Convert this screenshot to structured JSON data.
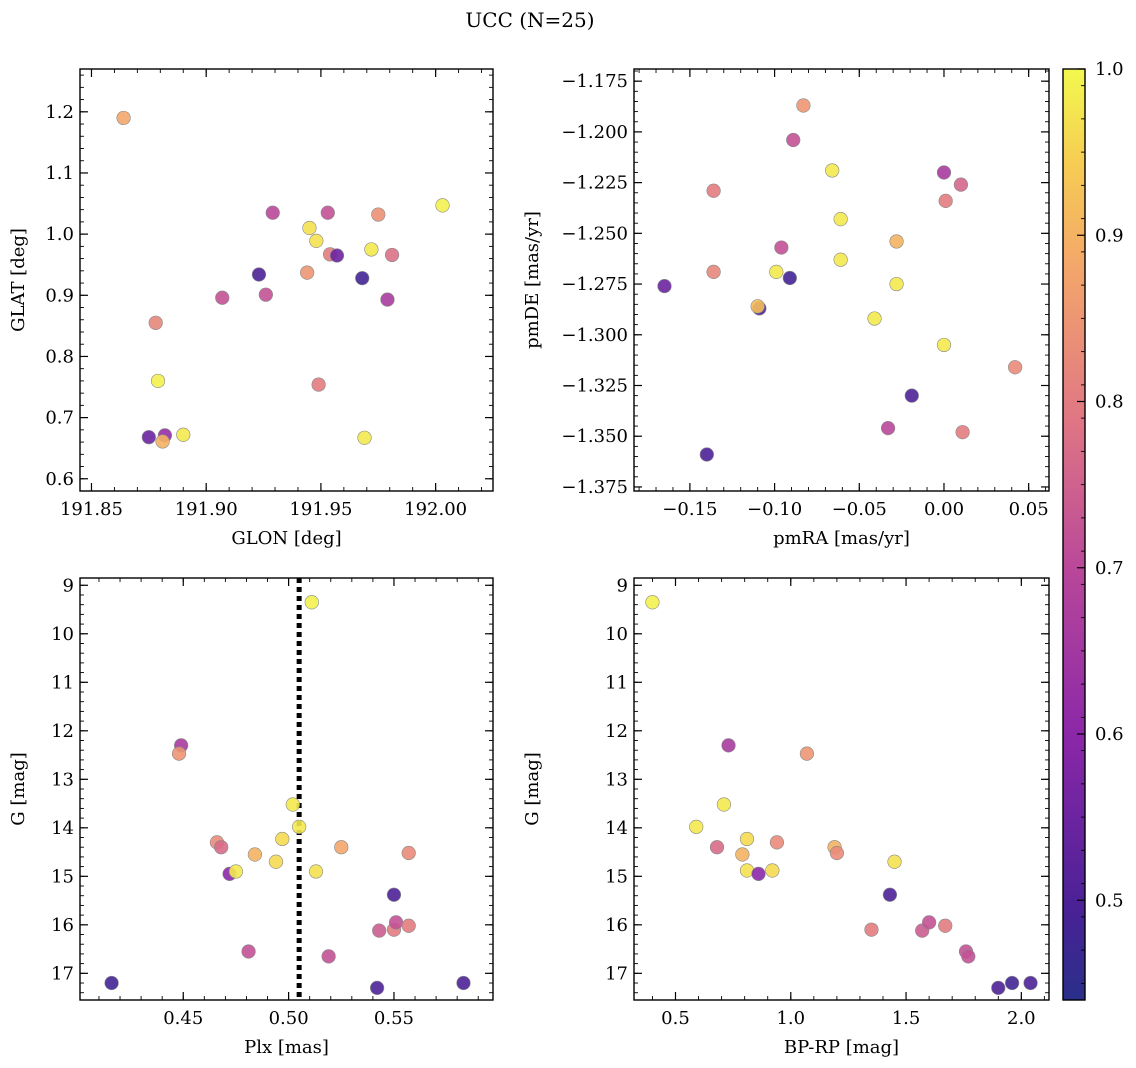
{
  "title": "UCC (N=25)",
  "colorbar": {
    "range": [
      0.44,
      1.0
    ],
    "ticks": [
      0.5,
      0.6,
      0.7,
      0.8,
      0.9,
      1.0
    ],
    "tick_labels": [
      "0.5",
      "0.6",
      "0.7",
      "0.8",
      "0.9",
      "1.0"
    ],
    "colormap": "plasma"
  },
  "chart_data": [
    {
      "id": "glon-glat",
      "type": "scatter",
      "xlabel": "GLON [deg]",
      "ylabel": "GLAT [deg]",
      "xlim": [
        191.845,
        192.025
      ],
      "ylim": [
        0.58,
        1.27
      ],
      "invert_y": false,
      "xticks": [
        191.85,
        191.9,
        191.95,
        192.0
      ],
      "xtick_labels": [
        "191.85",
        "191.90",
        "191.95",
        "192.00"
      ],
      "yticks": [
        0.6,
        0.7,
        0.8,
        0.9,
        1.0,
        1.1,
        1.2
      ],
      "ytick_labels": [
        "0.6",
        "0.7",
        "0.8",
        "0.9",
        "1.0",
        "1.1",
        "1.2"
      ],
      "points": [
        {
          "x": 191.864,
          "y": 1.19,
          "c": 0.88
        },
        {
          "x": 191.878,
          "y": 0.855,
          "c": 0.82
        },
        {
          "x": 191.879,
          "y": 0.76,
          "c": 0.99
        },
        {
          "x": 191.875,
          "y": 0.668,
          "c": 0.55
        },
        {
          "x": 191.882,
          "y": 0.671,
          "c": 0.62
        },
        {
          "x": 191.881,
          "y": 0.661,
          "c": 0.9
        },
        {
          "x": 191.89,
          "y": 0.672,
          "c": 0.98
        },
        {
          "x": 191.907,
          "y": 0.896,
          "c": 0.72
        },
        {
          "x": 191.923,
          "y": 0.934,
          "c": 0.5
        },
        {
          "x": 191.926,
          "y": 0.901,
          "c": 0.72
        },
        {
          "x": 191.929,
          "y": 1.035,
          "c": 0.7
        },
        {
          "x": 191.944,
          "y": 0.937,
          "c": 0.85
        },
        {
          "x": 191.945,
          "y": 1.01,
          "c": 0.97
        },
        {
          "x": 191.948,
          "y": 0.989,
          "c": 0.97
        },
        {
          "x": 191.949,
          "y": 0.754,
          "c": 0.8
        },
        {
          "x": 191.953,
          "y": 1.035,
          "c": 0.72
        },
        {
          "x": 191.954,
          "y": 0.967,
          "c": 0.8
        },
        {
          "x": 191.957,
          "y": 0.965,
          "c": 0.55
        },
        {
          "x": 191.968,
          "y": 0.928,
          "c": 0.48
        },
        {
          "x": 191.969,
          "y": 0.667,
          "c": 0.98
        },
        {
          "x": 191.972,
          "y": 0.975,
          "c": 0.98
        },
        {
          "x": 191.975,
          "y": 1.032,
          "c": 0.84
        },
        {
          "x": 191.979,
          "y": 0.893,
          "c": 0.66
        },
        {
          "x": 191.981,
          "y": 0.966,
          "c": 0.78
        },
        {
          "x": 192.003,
          "y": 1.047,
          "c": 0.99
        }
      ]
    },
    {
      "id": "pmra-pmde",
      "type": "scatter",
      "xlabel": "pmRA [mas/yr]",
      "ylabel": "pmDE [mas/yr]",
      "xlim": [
        -0.183,
        0.062
      ],
      "ylim": [
        -1.377,
        -1.169
      ],
      "invert_y": false,
      "xticks": [
        -0.15,
        -0.1,
        -0.05,
        0.0,
        0.05
      ],
      "xtick_labels": [
        "−0.15",
        "−0.10",
        "−0.05",
        "0.00",
        "0.05"
      ],
      "yticks": [
        -1.375,
        -1.35,
        -1.325,
        -1.3,
        -1.275,
        -1.25,
        -1.225,
        -1.2,
        -1.175
      ],
      "ytick_labels": [
        "−1.375",
        "−1.350",
        "−1.325",
        "−1.300",
        "−1.275",
        "−1.250",
        "−1.225",
        "−1.200",
        "−1.175"
      ],
      "points": [
        {
          "x": -0.165,
          "y": -1.276,
          "c": 0.55
        },
        {
          "x": -0.14,
          "y": -1.359,
          "c": 0.5
        },
        {
          "x": -0.136,
          "y": -1.229,
          "c": 0.8
        },
        {
          "x": -0.136,
          "y": -1.269,
          "c": 0.82
        },
        {
          "x": -0.109,
          "y": -1.287,
          "c": 0.5
        },
        {
          "x": -0.11,
          "y": -1.286,
          "c": 0.92
        },
        {
          "x": -0.099,
          "y": -1.269,
          "c": 0.98
        },
        {
          "x": -0.096,
          "y": -1.257,
          "c": 0.72
        },
        {
          "x": -0.091,
          "y": -1.272,
          "c": 0.48
        },
        {
          "x": -0.089,
          "y": -1.204,
          "c": 0.72
        },
        {
          "x": -0.083,
          "y": -1.187,
          "c": 0.85
        },
        {
          "x": -0.066,
          "y": -1.219,
          "c": 0.98
        },
        {
          "x": -0.061,
          "y": -1.243,
          "c": 0.98
        },
        {
          "x": -0.061,
          "y": -1.263,
          "c": 0.98
        },
        {
          "x": -0.041,
          "y": -1.292,
          "c": 0.98
        },
        {
          "x": -0.033,
          "y": -1.346,
          "c": 0.7
        },
        {
          "x": -0.028,
          "y": -1.254,
          "c": 0.9
        },
        {
          "x": -0.028,
          "y": -1.275,
          "c": 0.98
        },
        {
          "x": -0.019,
          "y": -1.33,
          "c": 0.5
        },
        {
          "x": 0.0,
          "y": -1.22,
          "c": 0.66
        },
        {
          "x": 0.0,
          "y": -1.305,
          "c": 0.98
        },
        {
          "x": 0.001,
          "y": -1.234,
          "c": 0.8
        },
        {
          "x": 0.01,
          "y": -1.226,
          "c": 0.76
        },
        {
          "x": 0.011,
          "y": -1.348,
          "c": 0.8
        },
        {
          "x": 0.042,
          "y": -1.316,
          "c": 0.83
        }
      ]
    },
    {
      "id": "plx-g",
      "type": "scatter",
      "xlabel": "Plx [mas]",
      "ylabel": "G [mag]",
      "xlim": [
        0.401,
        0.597
      ],
      "ylim": [
        8.85,
        17.55
      ],
      "invert_y": true,
      "vline": {
        "x": 0.505,
        "style": "dotted"
      },
      "xticks": [
        0.45,
        0.5,
        0.55
      ],
      "xtick_labels": [
        "0.45",
        "0.50",
        "0.55"
      ],
      "yticks": [
        9,
        10,
        11,
        12,
        13,
        14,
        15,
        16,
        17
      ],
      "ytick_labels": [
        "9",
        "10",
        "11",
        "12",
        "13",
        "14",
        "15",
        "16",
        "17"
      ],
      "points": [
        {
          "x": 0.416,
          "y": 17.2,
          "c": 0.48
        },
        {
          "x": 0.449,
          "y": 12.3,
          "c": 0.66
        },
        {
          "x": 0.448,
          "y": 12.47,
          "c": 0.85
        },
        {
          "x": 0.466,
          "y": 14.3,
          "c": 0.83
        },
        {
          "x": 0.468,
          "y": 14.4,
          "c": 0.77
        },
        {
          "x": 0.472,
          "y": 14.95,
          "c": 0.6
        },
        {
          "x": 0.475,
          "y": 14.9,
          "c": 0.98
        },
        {
          "x": 0.481,
          "y": 16.55,
          "c": 0.72
        },
        {
          "x": 0.484,
          "y": 14.55,
          "c": 0.9
        },
        {
          "x": 0.494,
          "y": 14.7,
          "c": 0.96
        },
        {
          "x": 0.497,
          "y": 14.23,
          "c": 0.96
        },
        {
          "x": 0.502,
          "y": 13.52,
          "c": 0.98
        },
        {
          "x": 0.505,
          "y": 13.98,
          "c": 0.98
        },
        {
          "x": 0.511,
          "y": 9.35,
          "c": 0.99
        },
        {
          "x": 0.513,
          "y": 14.9,
          "c": 0.97
        },
        {
          "x": 0.519,
          "y": 16.65,
          "c": 0.72
        },
        {
          "x": 0.525,
          "y": 14.4,
          "c": 0.88
        },
        {
          "x": 0.542,
          "y": 17.3,
          "c": 0.5
        },
        {
          "x": 0.543,
          "y": 16.12,
          "c": 0.74
        },
        {
          "x": 0.55,
          "y": 15.38,
          "c": 0.5
        },
        {
          "x": 0.55,
          "y": 16.1,
          "c": 0.8
        },
        {
          "x": 0.551,
          "y": 15.95,
          "c": 0.72
        },
        {
          "x": 0.557,
          "y": 16.02,
          "c": 0.8
        },
        {
          "x": 0.557,
          "y": 14.52,
          "c": 0.83
        },
        {
          "x": 0.583,
          "y": 17.2,
          "c": 0.5
        }
      ]
    },
    {
      "id": "bprp-g",
      "type": "scatter",
      "xlabel": "BP-RP [mag]",
      "ylabel": "G [mag]",
      "xlim": [
        0.32,
        2.12
      ],
      "ylim": [
        8.85,
        17.55
      ],
      "invert_y": true,
      "xticks": [
        0.5,
        1.0,
        1.5,
        2.0
      ],
      "xtick_labels": [
        "0.5",
        "1.0",
        "1.5",
        "2.0"
      ],
      "yticks": [
        9,
        10,
        11,
        12,
        13,
        14,
        15,
        16,
        17
      ],
      "ytick_labels": [
        "9",
        "10",
        "11",
        "12",
        "13",
        "14",
        "15",
        "16",
        "17"
      ],
      "points": [
        {
          "x": 0.4,
          "y": 9.35,
          "c": 0.99
        },
        {
          "x": 0.59,
          "y": 13.98,
          "c": 0.98
        },
        {
          "x": 0.68,
          "y": 14.4,
          "c": 0.77
        },
        {
          "x": 0.71,
          "y": 13.52,
          "c": 0.98
        },
        {
          "x": 0.73,
          "y": 12.3,
          "c": 0.66
        },
        {
          "x": 0.79,
          "y": 14.55,
          "c": 0.9
        },
        {
          "x": 0.81,
          "y": 14.23,
          "c": 0.96
        },
        {
          "x": 0.81,
          "y": 14.88,
          "c": 0.97
        },
        {
          "x": 0.86,
          "y": 14.95,
          "c": 0.6
        },
        {
          "x": 0.92,
          "y": 14.88,
          "c": 0.96
        },
        {
          "x": 0.94,
          "y": 14.3,
          "c": 0.83
        },
        {
          "x": 1.07,
          "y": 12.47,
          "c": 0.85
        },
        {
          "x": 1.19,
          "y": 14.4,
          "c": 0.9
        },
        {
          "x": 1.2,
          "y": 14.52,
          "c": 0.83
        },
        {
          "x": 1.35,
          "y": 16.1,
          "c": 0.8
        },
        {
          "x": 1.43,
          "y": 15.38,
          "c": 0.5
        },
        {
          "x": 1.45,
          "y": 14.7,
          "c": 0.97
        },
        {
          "x": 1.57,
          "y": 16.12,
          "c": 0.74
        },
        {
          "x": 1.6,
          "y": 15.95,
          "c": 0.72
        },
        {
          "x": 1.67,
          "y": 16.02,
          "c": 0.8
        },
        {
          "x": 1.76,
          "y": 16.55,
          "c": 0.72
        },
        {
          "x": 1.77,
          "y": 16.65,
          "c": 0.72
        },
        {
          "x": 1.9,
          "y": 17.3,
          "c": 0.5
        },
        {
          "x": 1.96,
          "y": 17.2,
          "c": 0.48
        },
        {
          "x": 2.04,
          "y": 17.2,
          "c": 0.5
        }
      ]
    }
  ]
}
